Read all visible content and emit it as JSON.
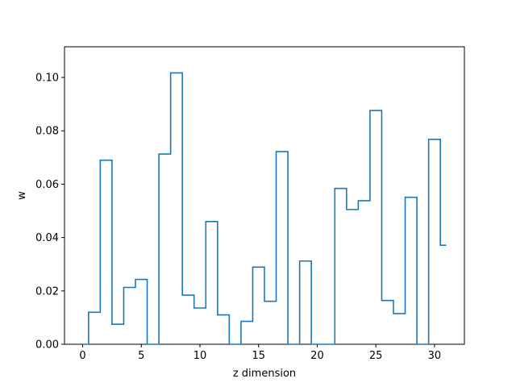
{
  "chart_data": {
    "type": "line",
    "style": "step",
    "title": "",
    "xlabel": "z dimension",
    "ylabel": "w",
    "xlim": [
      -1.55,
      32.55
    ],
    "ylim": [
      0.0,
      0.1115
    ],
    "xticks": [
      0,
      5,
      10,
      15,
      20,
      25,
      30
    ],
    "xtick_labels": [
      "0",
      "5",
      "10",
      "15",
      "20",
      "25",
      "30"
    ],
    "yticks": [
      0.0,
      0.02,
      0.04,
      0.06,
      0.08,
      0.1
    ],
    "ytick_labels": [
      "0.00",
      "0.02",
      "0.04",
      "0.06",
      "0.08",
      "0.10"
    ],
    "grid": false,
    "line_color": "#1f77b4",
    "series": [
      {
        "x": [
          0,
          1,
          2,
          3,
          4,
          5,
          6,
          7,
          8,
          9,
          10,
          11,
          12,
          13,
          14,
          15,
          16,
          17,
          18,
          19,
          20,
          21,
          22,
          23,
          24,
          25,
          26,
          27,
          28,
          29,
          30,
          31
        ],
        "values": [
          0.0,
          0.012,
          0.069,
          0.0075,
          0.0213,
          0.0243,
          0.0,
          0.0713,
          0.1017,
          0.0184,
          0.0136,
          0.046,
          0.011,
          0.0,
          0.0086,
          0.0289,
          0.0161,
          0.0722,
          0.0,
          0.0312,
          0.0,
          0.0,
          0.0584,
          0.0505,
          0.0538,
          0.0876,
          0.0164,
          0.0115,
          0.0551,
          0.0,
          0.0768,
          0.0371
        ]
      }
    ]
  }
}
